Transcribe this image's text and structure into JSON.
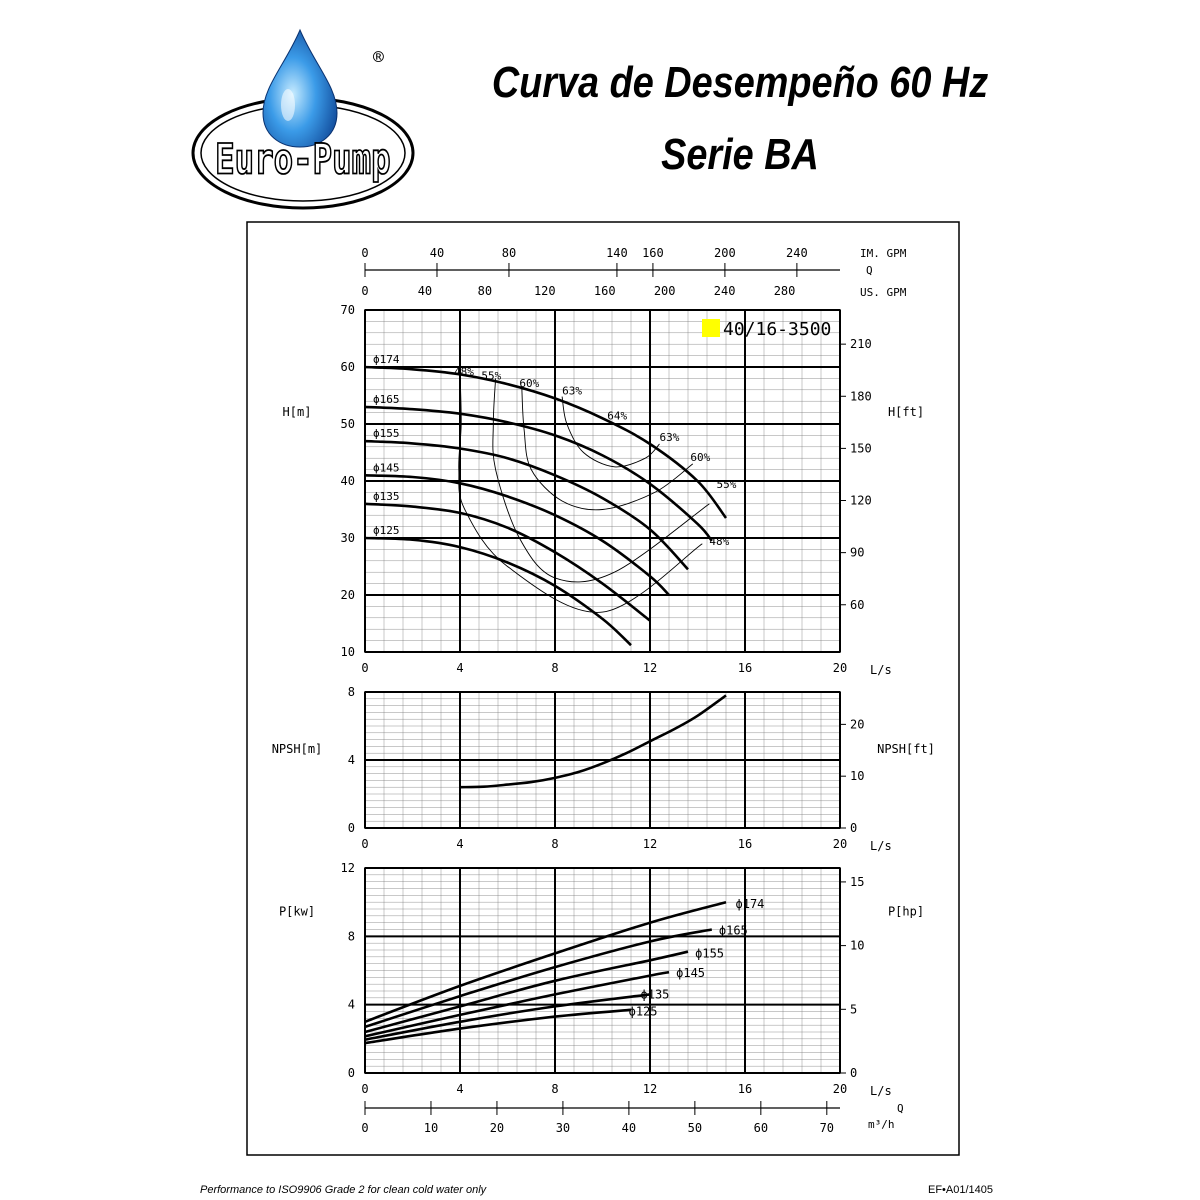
{
  "header": {
    "title_line1": "Curva de Desempeño 60 Hz",
    "title_line2": "Serie BA",
    "logo_text": "Euro-Pump",
    "logo_mark": "®"
  },
  "footer": {
    "note": "Performance to ISO9906 Grade 2 for clean cold water only",
    "code": "EF•A01/1405"
  },
  "colors": {
    "model_badge": "#ffff00",
    "ink": "#000000",
    "logo_blue": "#1b6fcf"
  },
  "chart_data": [
    {
      "id": "head",
      "type": "line",
      "title": "",
      "model_label": "40/16-3500",
      "xlabel": "L/s",
      "ylabel": "H[m]",
      "y2label": "H[ft]",
      "xlim": [
        0,
        20
      ],
      "ylim": [
        10,
        70
      ],
      "x_ticks": [
        0,
        4,
        8,
        12,
        16,
        20
      ],
      "y_ticks": [
        10,
        20,
        30,
        40,
        50,
        60,
        70
      ],
      "y2_ticks": [
        60,
        90,
        120,
        150,
        180,
        210
      ],
      "top_axes": [
        {
          "label_1": "IM. GPM",
          "label_2": "Q",
          "ticks": [
            0,
            40,
            80,
            140,
            160,
            200,
            240
          ]
        },
        {
          "label": "US. GPM",
          "ticks": [
            0,
            40,
            80,
            120,
            160,
            200,
            240,
            280
          ]
        }
      ],
      "series": [
        {
          "name": "ϕ174",
          "x": [
            0,
            2,
            4,
            6,
            8,
            10,
            12,
            14,
            15.2
          ],
          "y": [
            60,
            59.6,
            58.7,
            57,
            54.5,
            51,
            46.5,
            40,
            33.5
          ]
        },
        {
          "name": "ϕ165",
          "x": [
            0,
            2,
            4,
            6,
            8,
            10,
            12,
            14,
            14.6
          ],
          "y": [
            53,
            52.6,
            51.8,
            50.3,
            48,
            44.5,
            39.5,
            32.5,
            29.5
          ]
        },
        {
          "name": "ϕ155",
          "x": [
            0,
            2,
            4,
            6,
            8,
            10,
            12,
            13.6
          ],
          "y": [
            47,
            46.6,
            45.7,
            44,
            41,
            37,
            31.5,
            24.5
          ]
        },
        {
          "name": "ϕ145",
          "x": [
            0,
            2,
            4,
            6,
            8,
            10,
            12,
            12.8
          ],
          "y": [
            41,
            40.7,
            39.6,
            37.3,
            34,
            29.5,
            23.3,
            20
          ]
        },
        {
          "name": "ϕ135",
          "x": [
            0,
            2,
            4,
            6,
            8,
            10,
            12
          ],
          "y": [
            36,
            35.5,
            34.4,
            31.8,
            27.5,
            22,
            15.5
          ]
        },
        {
          "name": "ϕ125",
          "x": [
            0,
            2,
            4,
            6,
            8,
            10,
            11.2
          ],
          "y": [
            30,
            29.7,
            28.4,
            25.7,
            21.6,
            15.8,
            11.2
          ]
        }
      ],
      "efficiency_curves": [
        {
          "name": "48%",
          "x": [
            4,
            4.05,
            3.95,
            4.2,
            6,
            10,
            14.2
          ],
          "y": [
            59,
            50,
            42,
            35,
            25,
            17,
            29
          ],
          "label_left": [
            3.75,
            58.5
          ],
          "label_right": [
            14.5,
            28.8
          ]
        },
        {
          "name": "55%",
          "x": [
            5.5,
            5.4,
            5.5,
            6.5,
            8,
            10.5,
            14.5
          ],
          "y": [
            58,
            50,
            42,
            30,
            23,
            24,
            36
          ],
          "label_left": [
            4.9,
            57.8
          ],
          "label_right": [
            14.8,
            38.8
          ]
        },
        {
          "name": "60%",
          "x": [
            6.6,
            6.7,
            7,
            8.3,
            10,
            12.2,
            13.8
          ],
          "y": [
            56.5,
            49,
            42,
            36.5,
            35,
            38,
            43
          ],
          "label_left": [
            6.5,
            56.5
          ],
          "label_right": [
            13.7,
            43.5
          ]
        },
        {
          "name": "63%",
          "x": [
            8.3,
            8.5,
            9.2,
            10.5,
            11.8,
            12.4
          ],
          "y": [
            54.8,
            50,
            45,
            42.5,
            44,
            46.5
          ],
          "label_left": [
            8.3,
            55.2
          ],
          "label_right": [
            12.4,
            47
          ]
        }
      ],
      "annotations": [
        {
          "text": "64%",
          "x": 10.2,
          "y": 50.8
        }
      ]
    },
    {
      "id": "npsh",
      "type": "line",
      "xlabel": "L/s",
      "ylabel": "NPSH[m]",
      "y2label": "NPSH[ft]",
      "xlim": [
        0,
        20
      ],
      "ylim": [
        0,
        8
      ],
      "x_ticks": [
        0,
        4,
        8,
        12,
        16,
        20
      ],
      "y_ticks": [
        0,
        4,
        8
      ],
      "y2_ticks": [
        0,
        10,
        20
      ],
      "series": [
        {
          "name": "NPSH",
          "x": [
            4,
            5,
            6,
            7,
            8,
            9,
            10,
            11,
            12,
            13,
            14,
            15.2
          ],
          "y": [
            2.4,
            2.43,
            2.55,
            2.7,
            2.95,
            3.3,
            3.8,
            4.4,
            5.1,
            5.8,
            6.6,
            7.8
          ]
        }
      ]
    },
    {
      "id": "power",
      "type": "line",
      "xlabel": "L/s",
      "ylabel": "P[kw]",
      "y2label": "P[hp]",
      "xlim": [
        0,
        20
      ],
      "ylim": [
        0,
        12
      ],
      "x_ticks": [
        0,
        4,
        8,
        12,
        16,
        20
      ],
      "y_ticks": [
        0,
        4,
        8,
        12
      ],
      "y2_ticks": [
        0,
        5,
        10,
        15
      ],
      "bottom_axis": {
        "label_1": "Q",
        "label_2": "m³/h",
        "ticks": [
          0,
          10,
          20,
          30,
          40,
          50,
          60,
          70
        ]
      },
      "series": [
        {
          "name": "ϕ174",
          "x": [
            0,
            4,
            8,
            12,
            15.2
          ],
          "y": [
            3,
            5.1,
            7,
            8.8,
            10
          ]
        },
        {
          "name": "ϕ165",
          "x": [
            0,
            4,
            8,
            12,
            14.6
          ],
          "y": [
            2.7,
            4.5,
            6.2,
            7.7,
            8.4
          ]
        },
        {
          "name": "ϕ155",
          "x": [
            0,
            4,
            8,
            12,
            13.6
          ],
          "y": [
            2.4,
            3.9,
            5.4,
            6.6,
            7.1
          ]
        },
        {
          "name": "ϕ145",
          "x": [
            0,
            4,
            8,
            12,
            12.8
          ],
          "y": [
            2.15,
            3.4,
            4.6,
            5.7,
            5.9
          ]
        },
        {
          "name": "ϕ135",
          "x": [
            0,
            4,
            8,
            12
          ],
          "y": [
            1.95,
            3,
            3.9,
            4.6
          ]
        },
        {
          "name": "ϕ125",
          "x": [
            0,
            4,
            8,
            11.2
          ],
          "y": [
            1.75,
            2.6,
            3.3,
            3.7
          ]
        }
      ],
      "curve_labels": [
        {
          "text": "ϕ174",
          "x": 15.6,
          "y": 9.9
        },
        {
          "text": "ϕ165",
          "x": 14.9,
          "y": 8.35
        },
        {
          "text": "ϕ155",
          "x": 13.9,
          "y": 7.0
        },
        {
          "text": "ϕ145",
          "x": 13.1,
          "y": 5.85
        },
        {
          "text": "ϕ135",
          "x": 11.6,
          "y": 4.6
        },
        {
          "text": "ϕ125",
          "x": 11.1,
          "y": 3.6
        }
      ]
    }
  ]
}
